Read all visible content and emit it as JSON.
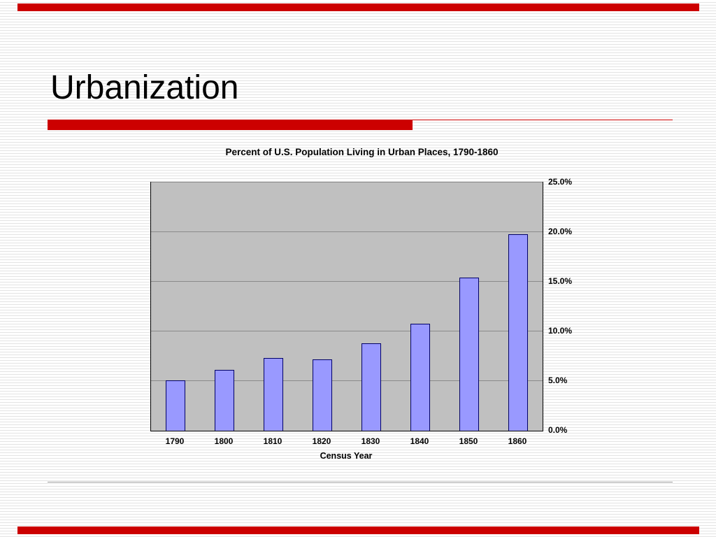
{
  "slide": {
    "title": "Urbanization",
    "accent_color": "#cc0000"
  },
  "chart_data": {
    "type": "bar",
    "title": "Percent of U.S. Population Living in Urban Places, 1790-1860",
    "xlabel": "Census Year",
    "ylabel": "",
    "categories": [
      "1790",
      "1800",
      "1810",
      "1820",
      "1830",
      "1840",
      "1850",
      "1860"
    ],
    "values": [
      5.1,
      6.1,
      7.3,
      7.2,
      8.8,
      10.8,
      15.4,
      19.8
    ],
    "ylim": [
      0,
      25
    ],
    "ytick_interval": 5,
    "ytick_labels": [
      "0.0%",
      "5.0%",
      "10.0%",
      "15.0%",
      "20.0%",
      "25.0%"
    ],
    "grid": true,
    "legend": "none",
    "yaxis_side": "right",
    "plot_bg": "#c0c0c0",
    "bar_color": "#9999ff",
    "bar_border_color": "#000066"
  }
}
